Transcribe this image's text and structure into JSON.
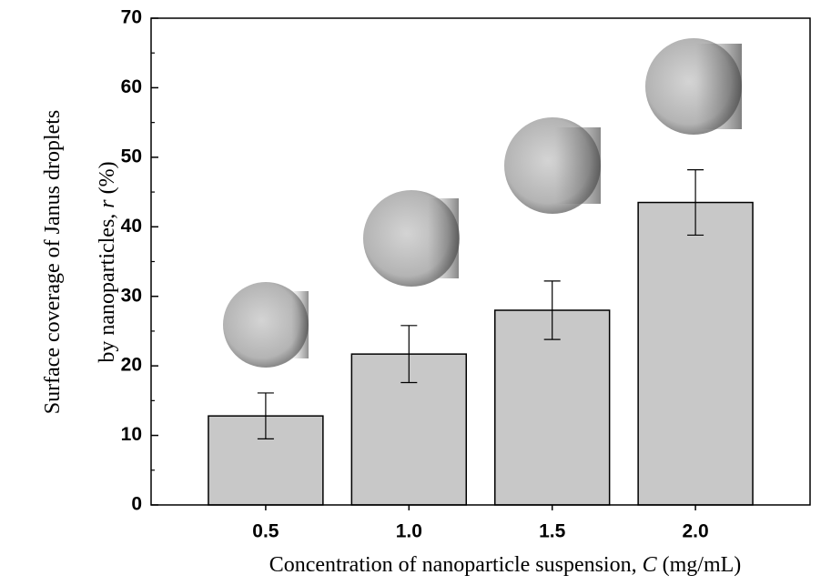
{
  "chart_data": {
    "type": "bar",
    "y_label": [
      "Surface coverage of Janus droplets",
      "by nanoparticles, ",
      "r",
      " (%)"
    ],
    "x_label": [
      "Concentration of nanoparticle suspension, ",
      "C",
      " (mg/mL)"
    ],
    "categories": [
      "0.5",
      "1.0",
      "1.5",
      "2.0"
    ],
    "values": [
      12.8,
      21.7,
      28.0,
      43.5
    ],
    "errors": [
      3.3,
      4.1,
      4.2,
      4.7
    ],
    "color": "#c8c8c8",
    "ylim": [
      0,
      70
    ],
    "yticks": [
      0,
      10,
      20,
      30,
      40,
      50,
      60,
      70
    ],
    "yminorticks": [
      5,
      15,
      25,
      35,
      45,
      55,
      65
    ]
  }
}
